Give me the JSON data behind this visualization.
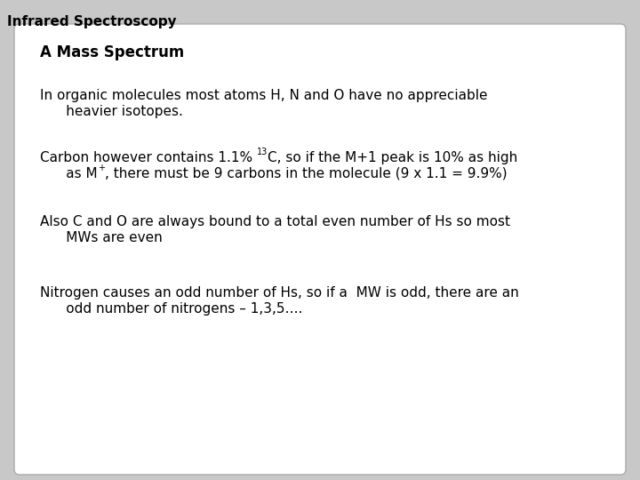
{
  "title": "Infrared Spectroscopy",
  "slide_bg": "#c8c8c8",
  "title_bg": "#c8c8c8",
  "card_bg": "#ffffff",
  "card_edge": "#aaaaaa",
  "heading": "A Mass Spectrum",
  "body_fontsize": 11,
  "heading_fontsize": 12,
  "body_color": "#000000",
  "para1_l1": "In organic molecules most atoms H, N and O have no appreciable",
  "para1_l2": "      heavier isotopes.",
  "para2_l1_pre": "Carbon however contains 1.1% ",
  "para2_l1_sup": "13",
  "para2_l1_post": "C, so if the M+1 peak is 10% as high",
  "para2_l2_pre": "      as M",
  "para2_l2_sup": "+",
  "para2_l2_post": ", there must be 9 carbons in the molecule (9 x 1.1 = 9.9%)",
  "para3_l1": "Also C and O are always bound to a total even number of Hs so most",
  "para3_l2": "      MWs are even",
  "para4_l1": "Nitrogen causes an odd number of Hs, so if a  MW is odd, there are an",
  "para4_l2": "      odd number of nitrogens – 1,3,5…."
}
